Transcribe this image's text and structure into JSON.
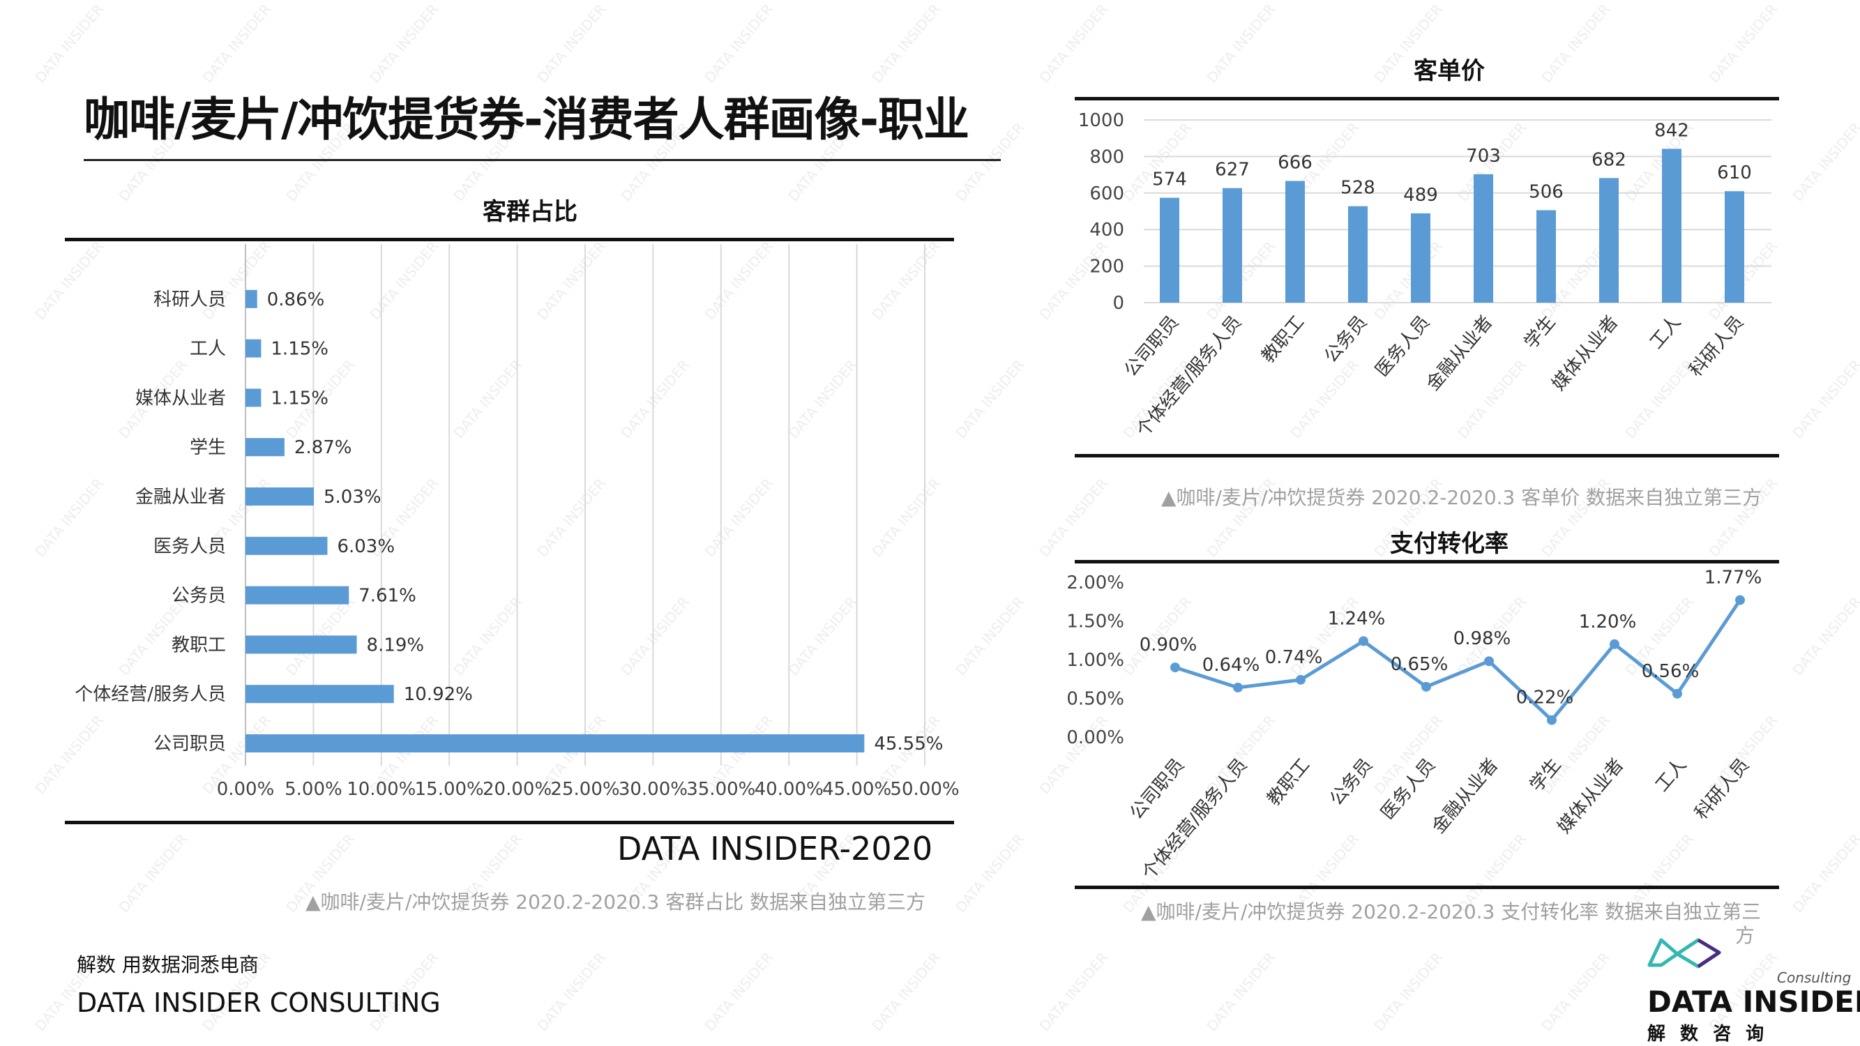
{
  "page": {
    "title": "咖啡/麦片/冲饮提货券-消费者人群画像-职业",
    "brand_slogan": "解数 用数据洞悉电商",
    "brand_name": "DATA INSIDER CONSULTING",
    "watermark_text": "DATA INSIDER"
  },
  "logo": {
    "name": "DATA INSIDER",
    "subtitle": "解 数 咨 询",
    "tag": "Consulting"
  },
  "chart_data": [
    {
      "type": "bar",
      "orientation": "horizontal",
      "title": "客群占比",
      "categories": [
        "公司职员",
        "个体经营/服务人员",
        "教职工",
        "公务员",
        "医务人员",
        "金融从业者",
        "学生",
        "媒体从业者",
        "工人",
        "科研人员"
      ],
      "values": [
        45.55,
        10.92,
        8.19,
        7.61,
        6.03,
        5.03,
        2.87,
        1.15,
        1.15,
        0.86
      ],
      "value_labels": [
        "45.55%",
        "10.92%",
        "8.19%",
        "7.61%",
        "6.03%",
        "5.03%",
        "2.87%",
        "1.15%",
        "1.15%",
        "0.86%"
      ],
      "xlim": [
        0,
        50
      ],
      "x_ticks": [
        "0.00%",
        "5.00%",
        "10.00%",
        "15.00%",
        "20.00%",
        "25.00%",
        "30.00%",
        "35.00%",
        "40.00%",
        "45.00%",
        "50.00%"
      ],
      "grid": true,
      "color": "#5B9BD5",
      "watermark_label": "DATA INSIDER-2020",
      "caption": "▲咖啡/麦片/冲饮提货券 2020.2-2020.3 客群占比 数据来自独立第三方"
    },
    {
      "type": "bar",
      "title": "客单价",
      "categories": [
        "公司职员",
        "个体经营/服务人员",
        "教职工",
        "公务员",
        "医务人员",
        "金融从业者",
        "学生",
        "媒体从业者",
        "工人",
        "科研人员"
      ],
      "values": [
        574,
        627,
        666,
        528,
        489,
        703,
        506,
        682,
        842,
        610
      ],
      "ylim": [
        0,
        1000
      ],
      "y_ticks": [
        "0",
        "200",
        "400",
        "600",
        "800",
        "1000"
      ],
      "grid": true,
      "color": "#5B9BD5",
      "caption": "▲咖啡/麦片/冲饮提货券 2020.2-2020.3 客单价 数据来自独立第三方"
    },
    {
      "type": "line",
      "title": "支付转化率",
      "categories": [
        "公司职员",
        "个体经营/服务人员",
        "教职工",
        "公务员",
        "医务人员",
        "金融从业者",
        "学生",
        "媒体从业者",
        "工人",
        "科研人员"
      ],
      "values": [
        0.9,
        0.64,
        0.74,
        1.24,
        0.65,
        0.98,
        0.22,
        1.2,
        0.56,
        1.77
      ],
      "value_labels": [
        "0.90%",
        "0.64%",
        "0.74%",
        "1.24%",
        "0.65%",
        "0.98%",
        "0.22%",
        "1.20%",
        "0.56%",
        "1.77%"
      ],
      "ylim": [
        0,
        2
      ],
      "y_ticks": [
        "0.00%",
        "0.50%",
        "1.00%",
        "1.50%",
        "2.00%"
      ],
      "grid": false,
      "color": "#5B9BD5",
      "caption_line1": "▲咖啡/麦片/冲饮提货券 2020.2-2020.3 支付转化率 数据来自独立第三",
      "caption_line2": "方"
    }
  ]
}
